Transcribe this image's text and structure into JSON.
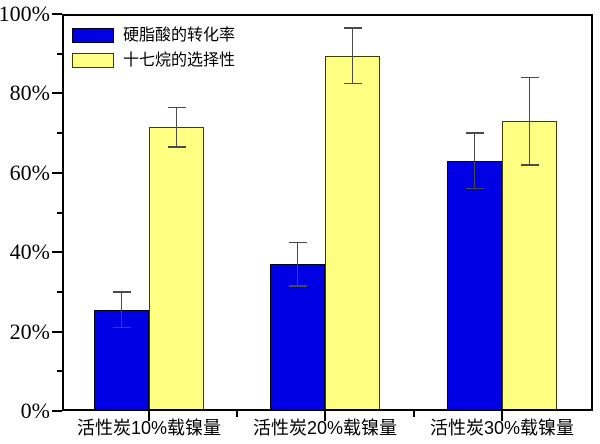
{
  "chart_data": {
    "type": "bar",
    "title": "",
    "xlabel": "",
    "ylabel": "",
    "categories": [
      "活性炭10%载镍量",
      "活性炭20%载镍量",
      "活性炭30%载镍量"
    ],
    "series": [
      {
        "key": "stearic-acid-conversion",
        "name": "硬脂酸的转化率",
        "values": [
          25.5,
          37,
          63
        ],
        "errors": [
          4.5,
          5.5,
          7
        ],
        "color": "#0000e4",
        "border_color": "#000020"
      },
      {
        "key": "heptadecane-selectivity",
        "name": "十七烷的选择性",
        "values": [
          71.5,
          89.5,
          73
        ],
        "errors": [
          5,
          7,
          11
        ],
        "color": "#ffff82",
        "border_color": "#3d3d00"
      }
    ],
    "ylim": [
      0,
      100
    ],
    "y_major_step": 20,
    "y_minor_step": 10,
    "y_tick_labels": [
      "0%",
      "20%",
      "40%",
      "60%",
      "80%",
      "100%"
    ],
    "grid": false,
    "legend_position": "top-left",
    "error_bar_color": "#4a4a4a",
    "axis_color": "#000000",
    "background_color": "#ffffff"
  }
}
